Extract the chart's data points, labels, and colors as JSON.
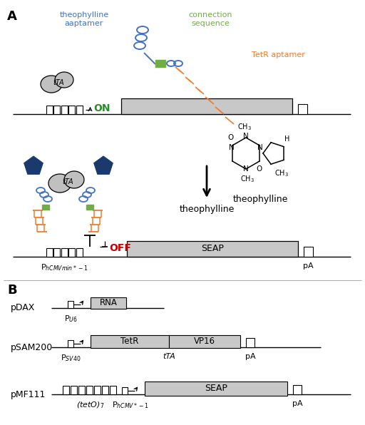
{
  "bg_color": "#ffffff",
  "label_A": "A",
  "label_B": "B",
  "theophylline_aptamer_color": "#4472c4",
  "connection_sequence_color": "#70ad47",
  "tetR_aptamer_color": "#ed7d31",
  "on_color": "#2d8a2d",
  "off_color": "#cc0000",
  "tTA_fill": "#c8c8c8",
  "gene_box_color": "#c8c8c8",
  "dark_blue": "#1a3a6e",
  "seap_label": "SEAP",
  "pa_label": "pA",
  "phcmv_label": "P$_{hCMVmin*-1}$",
  "on_label": "ON",
  "off_label": "OFF",
  "pdax_label": "pDAX",
  "psam200_label": "pSAM200",
  "pmf111_label": "pMF111",
  "pu6_label": "P$_{U6}$",
  "psv40_label": "P$_{SV40}$",
  "phcmv1_label": "P$_{hCMV*-1}$",
  "teto7_label": "($tetO$)$_7$",
  "tTA_label": "tTA",
  "rna_label": "RNA",
  "tetr_label": "TetR",
  "vp16_label": "VP16",
  "theophylline_aptamer_label": "theophylline\naaptamer",
  "connection_sequence_label": "connection\nsequence",
  "tetR_aptamer_label": "TetR aptamer",
  "theophylline_molecule_label": "theophylline"
}
